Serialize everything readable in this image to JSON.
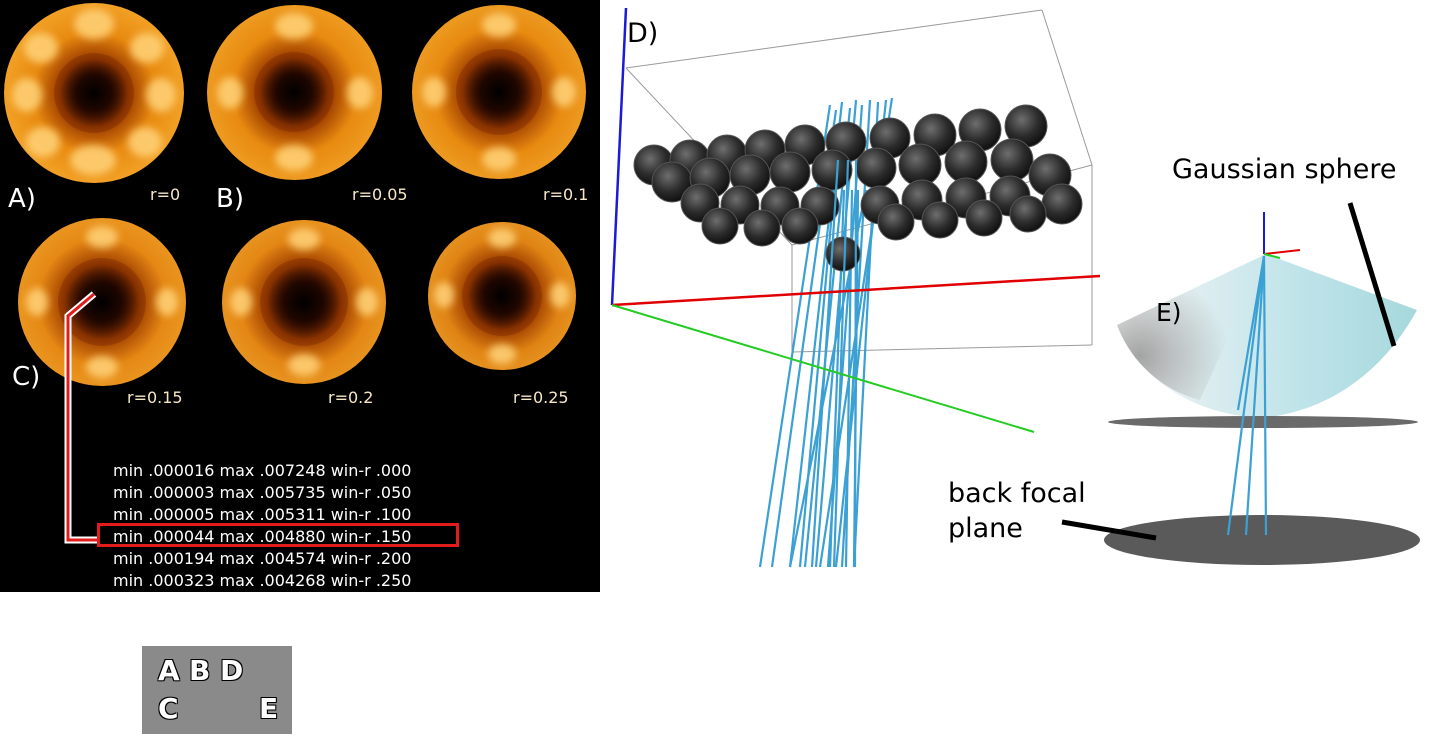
{
  "panels": {
    "a": "A)",
    "b": "B)",
    "c": "C)",
    "d": "D)",
    "e": "E)"
  },
  "radius_labels": [
    "r=0",
    "r=0.05",
    "r=0.1",
    "r=0.15",
    "r=0.2",
    "r=0.25"
  ],
  "stats": [
    "min .000016 max .007248 win-r .000",
    "min .000003 max .005735 win-r .050",
    "min .000005 max .005311 win-r .100",
    "min .000044 max .004880 win-r .150",
    "min .000194 max .004574 win-r .200",
    "min .000323 max .004268 win-r .250"
  ],
  "highlighted_stat_index": 3,
  "annotations": {
    "gaussian_sphere": "Gaussian sphere",
    "back_focal_plane_line1": "back focal",
    "back_focal_plane_line2": "plane"
  },
  "legend": {
    "row1": [
      "A",
      "B",
      "D"
    ],
    "row2": [
      "C",
      "E"
    ]
  },
  "colors": {
    "highlight": "#e21b1b",
    "ray": "#3ba0d3",
    "axis_x": "#e00000",
    "axis_y": "#22cc22",
    "axis_z": "#1a1ad8",
    "sphere_body": "#333333",
    "gaussian_sphere": "#bfe4ea",
    "focal_plane": "#5a5a5a"
  }
}
